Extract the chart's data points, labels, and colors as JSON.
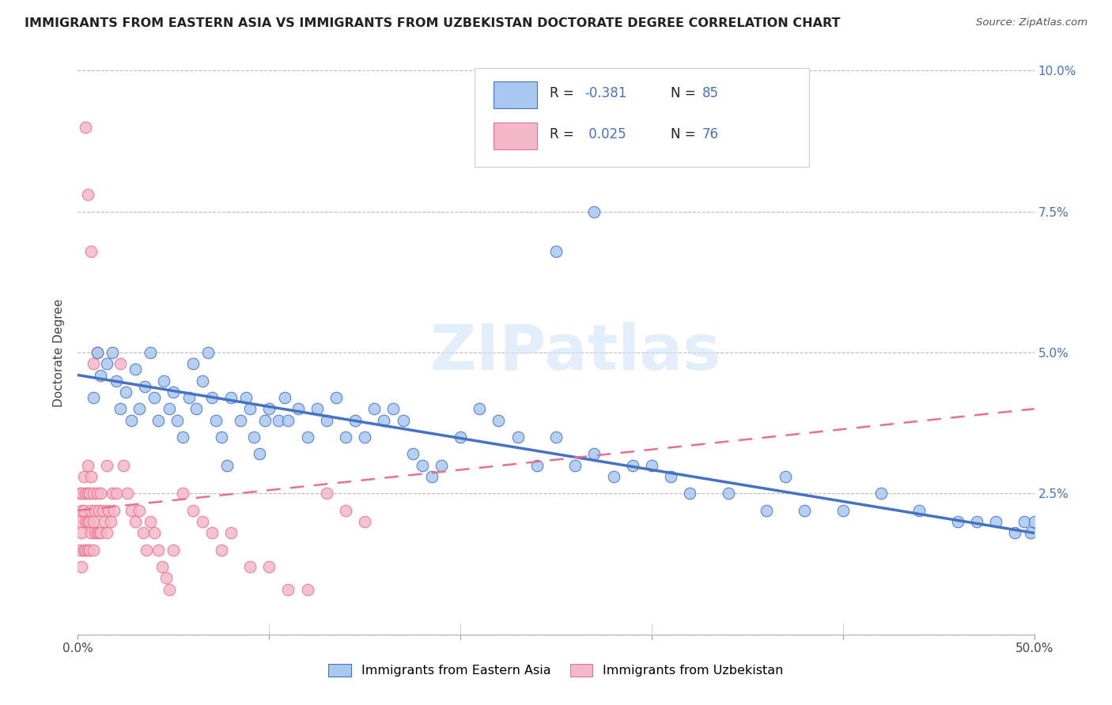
{
  "title": "IMMIGRANTS FROM EASTERN ASIA VS IMMIGRANTS FROM UZBEKISTAN DOCTORATE DEGREE CORRELATION CHART",
  "source": "Source: ZipAtlas.com",
  "ylabel": "Doctorate Degree",
  "xlim": [
    0.0,
    0.5
  ],
  "ylim": [
    0.0,
    0.1
  ],
  "yticks": [
    0.0,
    0.025,
    0.05,
    0.075,
    0.1
  ],
  "yticklabels_right": [
    "",
    "2.5%",
    "5.0%",
    "7.5%",
    "10.0%"
  ],
  "color_blue": "#A8C8F0",
  "color_pink": "#F5B8C8",
  "color_blue_dark": "#4472C4",
  "color_pink_dark": "#E87090",
  "watermark_text": "ZIPatlas",
  "legend1_label": "Immigrants from Eastern Asia",
  "legend2_label": "Immigrants from Uzbekistan",
  "blue_line_x0": 0.0,
  "blue_line_y0": 0.046,
  "blue_line_x1": 0.5,
  "blue_line_y1": 0.018,
  "pink_line_x0": 0.0,
  "pink_line_y0": 0.022,
  "pink_line_x1": 0.5,
  "pink_line_y1": 0.04,
  "blue_scatter_x": [
    0.008,
    0.01,
    0.012,
    0.015,
    0.018,
    0.02,
    0.022,
    0.025,
    0.028,
    0.03,
    0.032,
    0.035,
    0.038,
    0.04,
    0.042,
    0.045,
    0.048,
    0.05,
    0.052,
    0.055,
    0.058,
    0.06,
    0.062,
    0.065,
    0.068,
    0.07,
    0.072,
    0.075,
    0.078,
    0.08,
    0.085,
    0.088,
    0.09,
    0.092,
    0.095,
    0.098,
    0.1,
    0.105,
    0.108,
    0.11,
    0.115,
    0.12,
    0.125,
    0.13,
    0.135,
    0.14,
    0.145,
    0.15,
    0.155,
    0.16,
    0.165,
    0.17,
    0.175,
    0.18,
    0.185,
    0.19,
    0.2,
    0.21,
    0.22,
    0.23,
    0.24,
    0.25,
    0.26,
    0.27,
    0.28,
    0.29,
    0.3,
    0.31,
    0.32,
    0.34,
    0.36,
    0.37,
    0.38,
    0.4,
    0.42,
    0.44,
    0.46,
    0.47,
    0.48,
    0.49,
    0.495,
    0.498,
    0.5,
    0.25,
    0.27
  ],
  "blue_scatter_y": [
    0.042,
    0.05,
    0.046,
    0.048,
    0.05,
    0.045,
    0.04,
    0.043,
    0.038,
    0.047,
    0.04,
    0.044,
    0.05,
    0.042,
    0.038,
    0.045,
    0.04,
    0.043,
    0.038,
    0.035,
    0.042,
    0.048,
    0.04,
    0.045,
    0.05,
    0.042,
    0.038,
    0.035,
    0.03,
    0.042,
    0.038,
    0.042,
    0.04,
    0.035,
    0.032,
    0.038,
    0.04,
    0.038,
    0.042,
    0.038,
    0.04,
    0.035,
    0.04,
    0.038,
    0.042,
    0.035,
    0.038,
    0.035,
    0.04,
    0.038,
    0.04,
    0.038,
    0.032,
    0.03,
    0.028,
    0.03,
    0.035,
    0.04,
    0.038,
    0.035,
    0.03,
    0.035,
    0.03,
    0.032,
    0.028,
    0.03,
    0.03,
    0.028,
    0.025,
    0.025,
    0.022,
    0.028,
    0.022,
    0.022,
    0.025,
    0.022,
    0.02,
    0.02,
    0.02,
    0.018,
    0.02,
    0.018,
    0.02,
    0.068,
    0.075
  ],
  "pink_scatter_x": [
    0.001,
    0.001,
    0.001,
    0.002,
    0.002,
    0.002,
    0.002,
    0.003,
    0.003,
    0.003,
    0.004,
    0.004,
    0.004,
    0.005,
    0.005,
    0.005,
    0.005,
    0.006,
    0.006,
    0.006,
    0.007,
    0.007,
    0.007,
    0.008,
    0.008,
    0.008,
    0.009,
    0.009,
    0.01,
    0.01,
    0.011,
    0.011,
    0.012,
    0.012,
    0.013,
    0.014,
    0.015,
    0.016,
    0.017,
    0.018,
    0.019,
    0.02,
    0.022,
    0.024,
    0.026,
    0.028,
    0.03,
    0.032,
    0.034,
    0.036,
    0.038,
    0.04,
    0.042,
    0.044,
    0.046,
    0.048,
    0.05,
    0.055,
    0.06,
    0.065,
    0.07,
    0.075,
    0.08,
    0.09,
    0.1,
    0.11,
    0.12,
    0.13,
    0.14,
    0.15,
    0.004,
    0.005,
    0.007,
    0.008,
    0.01,
    0.015
  ],
  "pink_scatter_y": [
    0.025,
    0.02,
    0.015,
    0.025,
    0.022,
    0.018,
    0.012,
    0.028,
    0.022,
    0.015,
    0.025,
    0.02,
    0.015,
    0.03,
    0.025,
    0.02,
    0.015,
    0.025,
    0.02,
    0.015,
    0.028,
    0.022,
    0.018,
    0.025,
    0.02,
    0.015,
    0.022,
    0.018,
    0.025,
    0.018,
    0.022,
    0.018,
    0.025,
    0.018,
    0.022,
    0.02,
    0.018,
    0.022,
    0.02,
    0.025,
    0.022,
    0.025,
    0.048,
    0.03,
    0.025,
    0.022,
    0.02,
    0.022,
    0.018,
    0.015,
    0.02,
    0.018,
    0.015,
    0.012,
    0.01,
    0.008,
    0.015,
    0.025,
    0.022,
    0.02,
    0.018,
    0.015,
    0.018,
    0.012,
    0.012,
    0.008,
    0.008,
    0.025,
    0.022,
    0.02,
    0.09,
    0.078,
    0.068,
    0.048,
    0.05,
    0.03
  ]
}
